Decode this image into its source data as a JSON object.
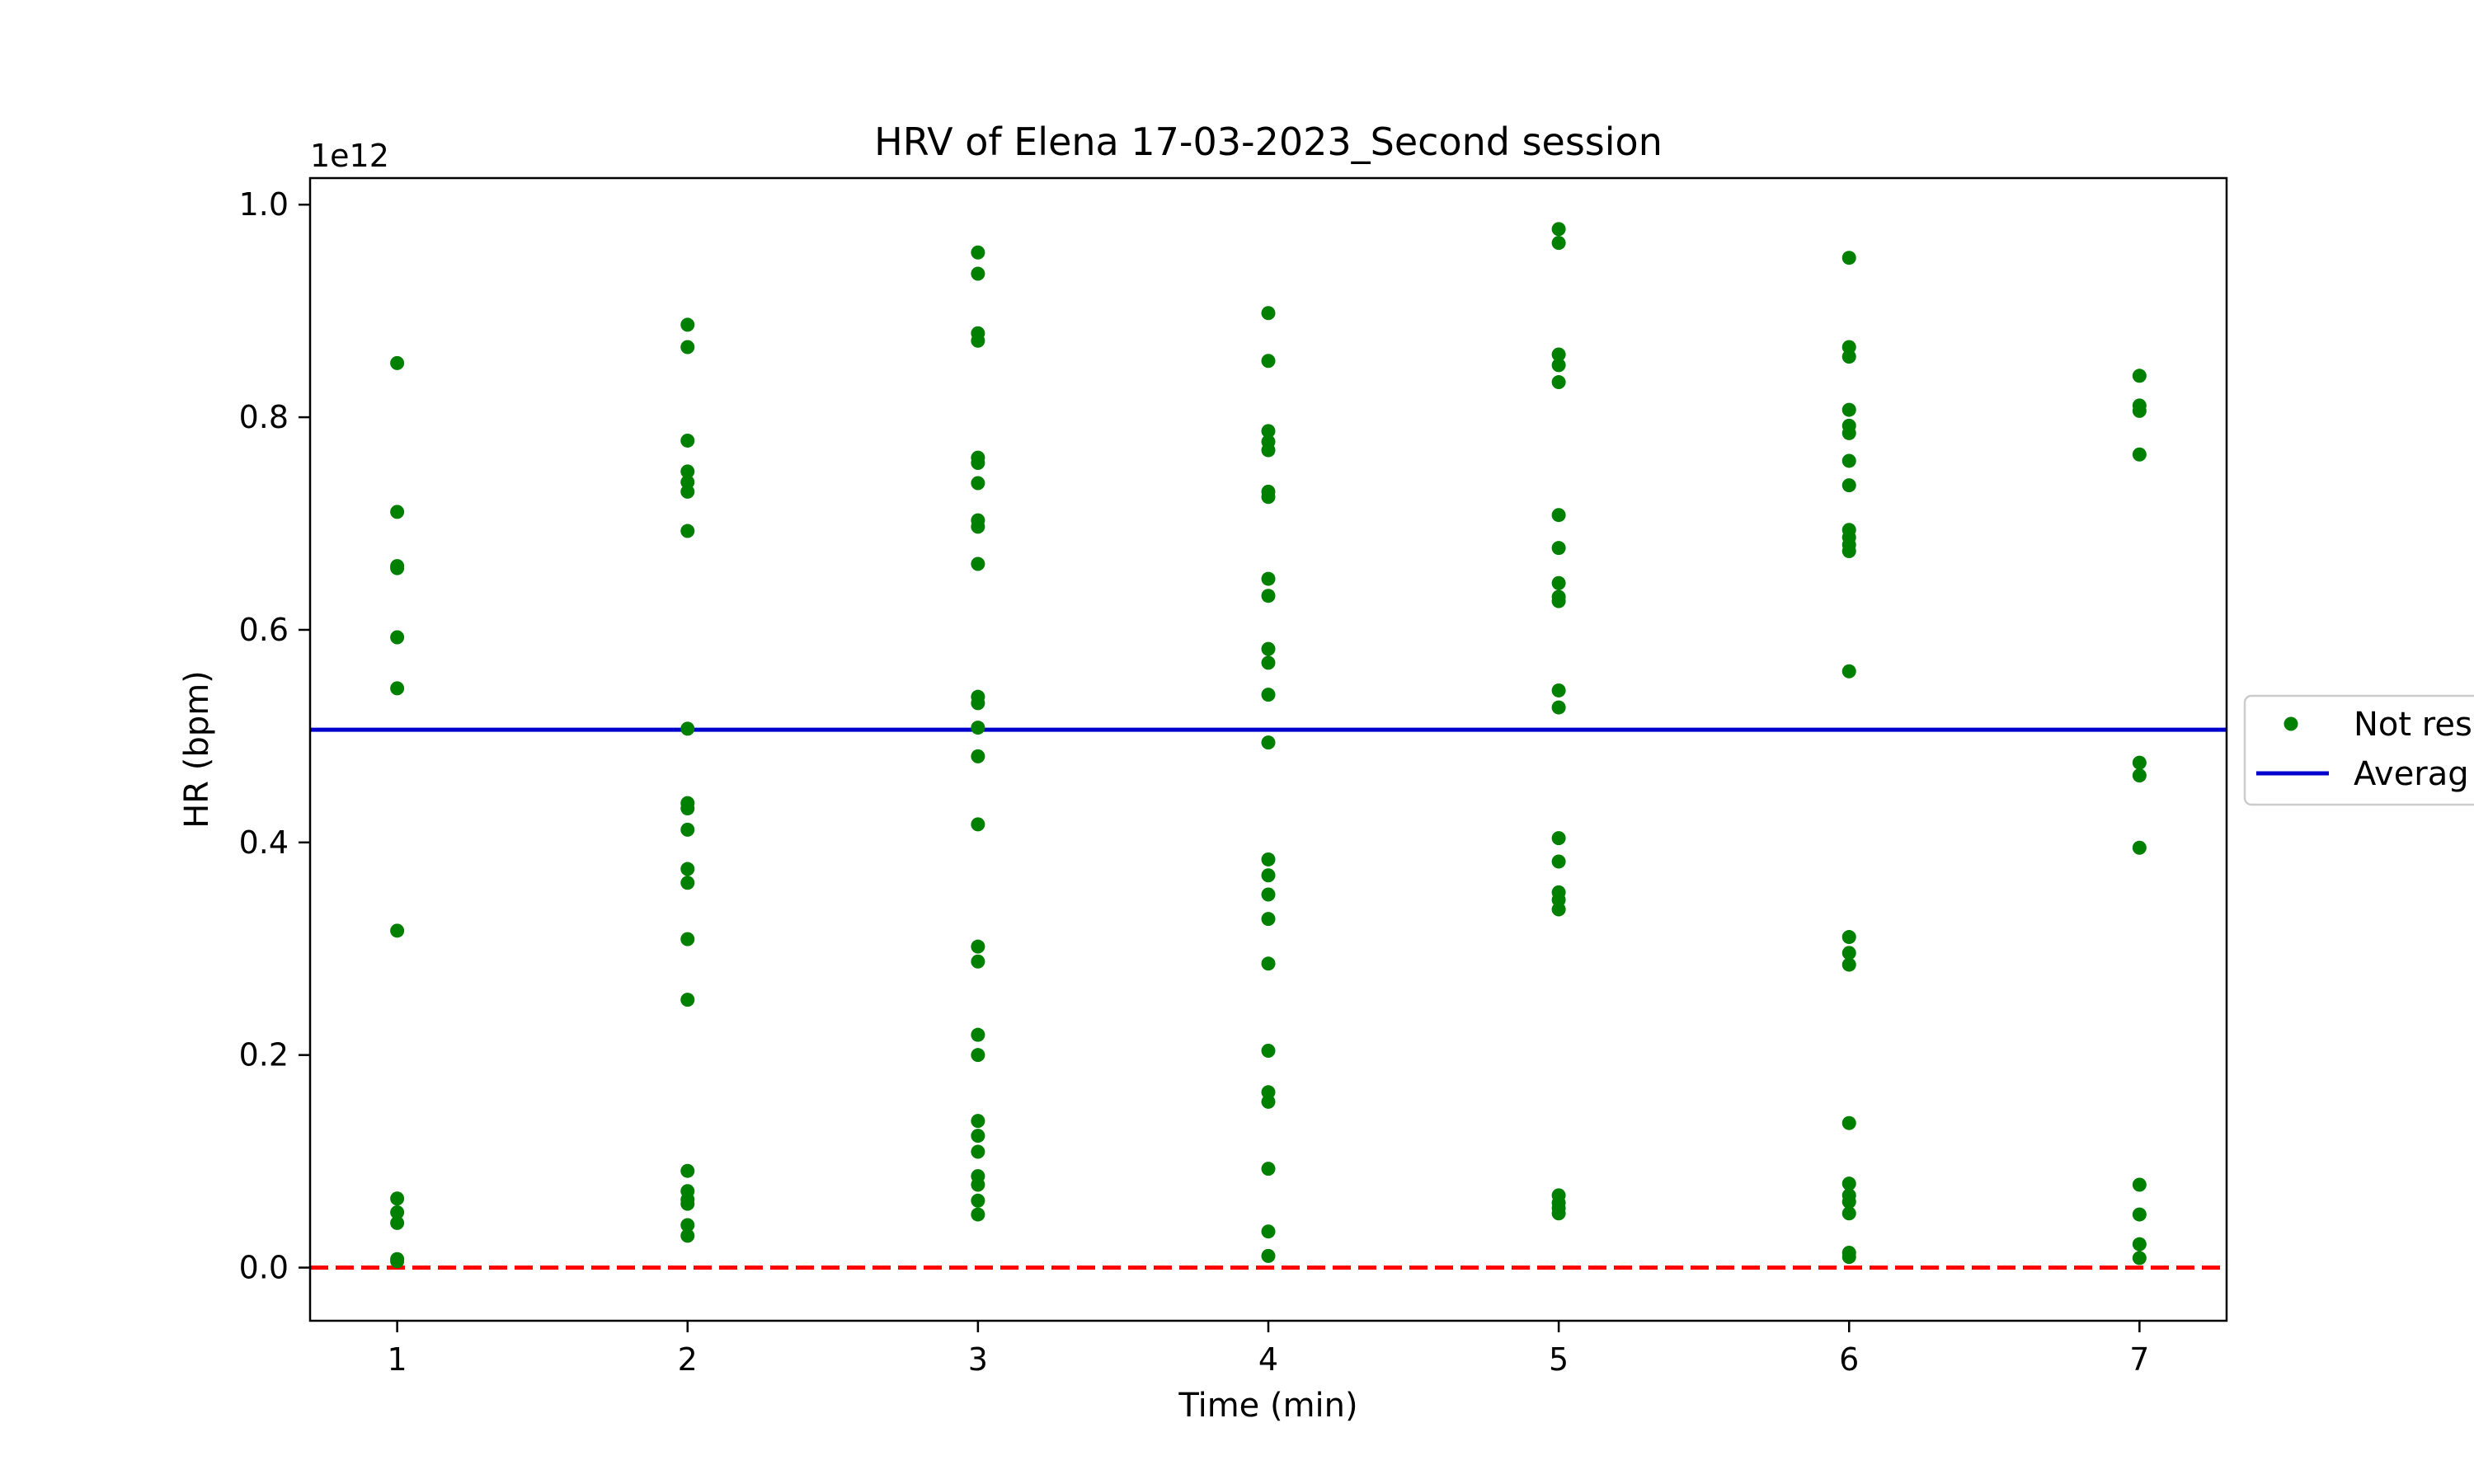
{
  "chart_data": {
    "type": "scatter",
    "title": "HRV of Elena 17-03-2023_Second session",
    "xlabel": "Time (min)",
    "ylabel": "HR (bpm)",
    "y_offset_label": "1e12",
    "xlim": [
      0.7,
      7.3
    ],
    "ylim": [
      -0.05,
      1.025
    ],
    "x_ticks": [
      1,
      2,
      3,
      4,
      5,
      6,
      7
    ],
    "x_tick_labels": [
      "1",
      "2",
      "3",
      "4",
      "5",
      "6",
      "7"
    ],
    "y_ticks": [
      0.0,
      0.2,
      0.4,
      0.6,
      0.8,
      1.0
    ],
    "y_tick_labels": [
      "0.0",
      "0.2",
      "0.4",
      "0.6",
      "0.8",
      "1.0"
    ],
    "grid": false,
    "legend_position": "center-right (outside plot area)",
    "series": [
      {
        "name": "Not resting",
        "kind": "scatter",
        "color": "#008000",
        "points": [
          {
            "x": 1,
            "y": 0.851
          },
          {
            "x": 1,
            "y": 0.711
          },
          {
            "x": 1,
            "y": 0.66
          },
          {
            "x": 1,
            "y": 0.658
          },
          {
            "x": 1,
            "y": 0.593
          },
          {
            "x": 1,
            "y": 0.545
          },
          {
            "x": 1,
            "y": 0.317
          },
          {
            "x": 1,
            "y": 0.065
          },
          {
            "x": 1,
            "y": 0.052
          },
          {
            "x": 1,
            "y": 0.042
          },
          {
            "x": 1,
            "y": 0.008
          },
          {
            "x": 1,
            "y": 0.006
          },
          {
            "x": 2,
            "y": 0.887
          },
          {
            "x": 2,
            "y": 0.866
          },
          {
            "x": 2,
            "y": 0.778
          },
          {
            "x": 2,
            "y": 0.749
          },
          {
            "x": 2,
            "y": 0.739
          },
          {
            "x": 2,
            "y": 0.73
          },
          {
            "x": 2,
            "y": 0.693
          },
          {
            "x": 2,
            "y": 0.507
          },
          {
            "x": 2,
            "y": 0.437
          },
          {
            "x": 2,
            "y": 0.432
          },
          {
            "x": 2,
            "y": 0.412
          },
          {
            "x": 2,
            "y": 0.375
          },
          {
            "x": 2,
            "y": 0.362
          },
          {
            "x": 2,
            "y": 0.309
          },
          {
            "x": 2,
            "y": 0.252
          },
          {
            "x": 2,
            "y": 0.091
          },
          {
            "x": 2,
            "y": 0.072
          },
          {
            "x": 2,
            "y": 0.064
          },
          {
            "x": 2,
            "y": 0.06
          },
          {
            "x": 2,
            "y": 0.04
          },
          {
            "x": 2,
            "y": 0.03
          },
          {
            "x": 3,
            "y": 0.955
          },
          {
            "x": 3,
            "y": 0.935
          },
          {
            "x": 3,
            "y": 0.879
          },
          {
            "x": 3,
            "y": 0.872
          },
          {
            "x": 3,
            "y": 0.762
          },
          {
            "x": 3,
            "y": 0.757
          },
          {
            "x": 3,
            "y": 0.738
          },
          {
            "x": 3,
            "y": 0.703
          },
          {
            "x": 3,
            "y": 0.697
          },
          {
            "x": 3,
            "y": 0.662
          },
          {
            "x": 3,
            "y": 0.537
          },
          {
            "x": 3,
            "y": 0.531
          },
          {
            "x": 3,
            "y": 0.508
          },
          {
            "x": 3,
            "y": 0.481
          },
          {
            "x": 3,
            "y": 0.417
          },
          {
            "x": 3,
            "y": 0.302
          },
          {
            "x": 3,
            "y": 0.288
          },
          {
            "x": 3,
            "y": 0.219
          },
          {
            "x": 3,
            "y": 0.2
          },
          {
            "x": 3,
            "y": 0.138
          },
          {
            "x": 3,
            "y": 0.124
          },
          {
            "x": 3,
            "y": 0.109
          },
          {
            "x": 3,
            "y": 0.086
          },
          {
            "x": 3,
            "y": 0.078
          },
          {
            "x": 3,
            "y": 0.063
          },
          {
            "x": 3,
            "y": 0.05
          },
          {
            "x": 4,
            "y": 0.898
          },
          {
            "x": 4,
            "y": 0.853
          },
          {
            "x": 4,
            "y": 0.787
          },
          {
            "x": 4,
            "y": 0.777
          },
          {
            "x": 4,
            "y": 0.769
          },
          {
            "x": 4,
            "y": 0.73
          },
          {
            "x": 4,
            "y": 0.725
          },
          {
            "x": 4,
            "y": 0.648
          },
          {
            "x": 4,
            "y": 0.632
          },
          {
            "x": 4,
            "y": 0.582
          },
          {
            "x": 4,
            "y": 0.569
          },
          {
            "x": 4,
            "y": 0.539
          },
          {
            "x": 4,
            "y": 0.494
          },
          {
            "x": 4,
            "y": 0.384
          },
          {
            "x": 4,
            "y": 0.369
          },
          {
            "x": 4,
            "y": 0.351
          },
          {
            "x": 4,
            "y": 0.328
          },
          {
            "x": 4,
            "y": 0.286
          },
          {
            "x": 4,
            "y": 0.204
          },
          {
            "x": 4,
            "y": 0.165
          },
          {
            "x": 4,
            "y": 0.156
          },
          {
            "x": 4,
            "y": 0.093
          },
          {
            "x": 4,
            "y": 0.034
          },
          {
            "x": 4,
            "y": 0.011
          },
          {
            "x": 5,
            "y": 0.977
          },
          {
            "x": 5,
            "y": 0.964
          },
          {
            "x": 5,
            "y": 0.859
          },
          {
            "x": 5,
            "y": 0.849
          },
          {
            "x": 5,
            "y": 0.833
          },
          {
            "x": 5,
            "y": 0.708
          },
          {
            "x": 5,
            "y": 0.677
          },
          {
            "x": 5,
            "y": 0.644
          },
          {
            "x": 5,
            "y": 0.631
          },
          {
            "x": 5,
            "y": 0.627
          },
          {
            "x": 5,
            "y": 0.543
          },
          {
            "x": 5,
            "y": 0.527
          },
          {
            "x": 5,
            "y": 0.404
          },
          {
            "x": 5,
            "y": 0.382
          },
          {
            "x": 5,
            "y": 0.353
          },
          {
            "x": 5,
            "y": 0.346
          },
          {
            "x": 5,
            "y": 0.337
          },
          {
            "x": 5,
            "y": 0.068
          },
          {
            "x": 5,
            "y": 0.061
          },
          {
            "x": 5,
            "y": 0.056
          },
          {
            "x": 5,
            "y": 0.051
          },
          {
            "x": 6,
            "y": 0.95
          },
          {
            "x": 6,
            "y": 0.866
          },
          {
            "x": 6,
            "y": 0.857
          },
          {
            "x": 6,
            "y": 0.807
          },
          {
            "x": 6,
            "y": 0.792
          },
          {
            "x": 6,
            "y": 0.785
          },
          {
            "x": 6,
            "y": 0.759
          },
          {
            "x": 6,
            "y": 0.736
          },
          {
            "x": 6,
            "y": 0.694
          },
          {
            "x": 6,
            "y": 0.687
          },
          {
            "x": 6,
            "y": 0.68
          },
          {
            "x": 6,
            "y": 0.674
          },
          {
            "x": 6,
            "y": 0.561
          },
          {
            "x": 6,
            "y": 0.311
          },
          {
            "x": 6,
            "y": 0.296
          },
          {
            "x": 6,
            "y": 0.285
          },
          {
            "x": 6,
            "y": 0.136
          },
          {
            "x": 6,
            "y": 0.079
          },
          {
            "x": 6,
            "y": 0.068
          },
          {
            "x": 6,
            "y": 0.062
          },
          {
            "x": 6,
            "y": 0.051
          },
          {
            "x": 6,
            "y": 0.014
          },
          {
            "x": 6,
            "y": 0.01
          },
          {
            "x": 7,
            "y": 0.839
          },
          {
            "x": 7,
            "y": 0.811
          },
          {
            "x": 7,
            "y": 0.806
          },
          {
            "x": 7,
            "y": 0.765
          },
          {
            "x": 7,
            "y": 0.475
          },
          {
            "x": 7,
            "y": 0.463
          },
          {
            "x": 7,
            "y": 0.395
          },
          {
            "x": 7,
            "y": 0.078
          },
          {
            "x": 7,
            "y": 0.05
          },
          {
            "x": 7,
            "y": 0.022
          },
          {
            "x": 7,
            "y": 0.009
          }
        ]
      },
      {
        "name": "Averag",
        "kind": "hline",
        "color": "#0000cc",
        "y": 0.506
      },
      {
        "kind": "hline",
        "color": "#ff0000",
        "style": "dashed",
        "y": 0.0
      }
    ]
  },
  "legend": {
    "entries": [
      {
        "label": "Not res",
        "color": "#008000",
        "marker": "dot"
      },
      {
        "label": "Averag",
        "color": "#0000cc",
        "marker": "line"
      }
    ]
  }
}
